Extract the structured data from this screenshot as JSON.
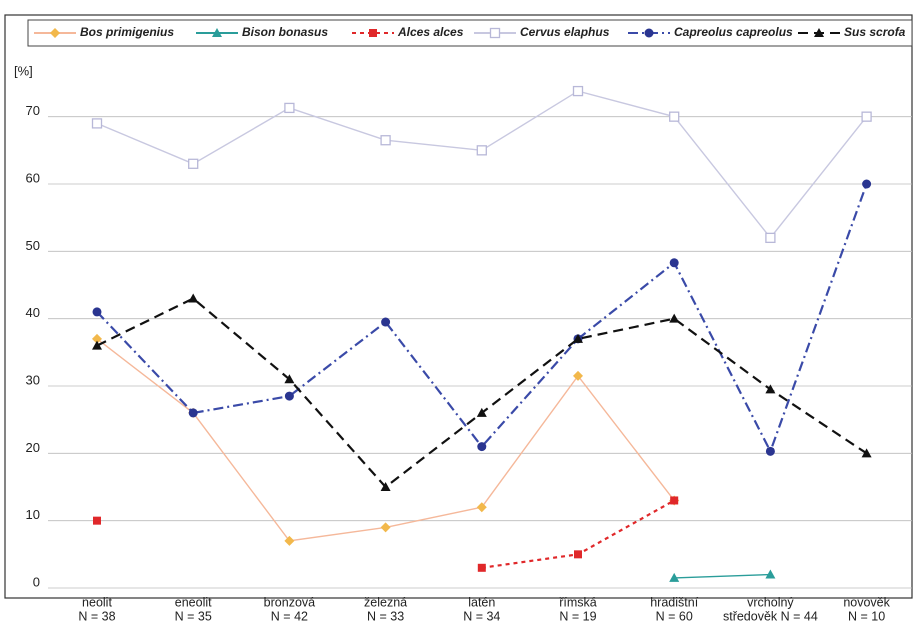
{
  "chart_data": {
    "type": "line",
    "y_axis_label": "[%]",
    "categories": [
      [
        "neolit",
        "N = 38"
      ],
      [
        "eneolit",
        "N = 35"
      ],
      [
        "bronzová",
        "N = 42"
      ],
      [
        "železná",
        "N = 33"
      ],
      [
        "latén",
        "N = 34"
      ],
      [
        "římská",
        "N = 19"
      ],
      [
        "hradištní",
        "N = 60"
      ],
      [
        "vrcholný",
        "středověk N = 44"
      ],
      [
        "novověk",
        "N = 10"
      ]
    ],
    "ylim": [
      0,
      75
    ],
    "yticks": [
      0,
      10,
      20,
      30,
      40,
      50,
      60,
      70
    ],
    "grid": true,
    "legend": "top",
    "series": [
      {
        "name": "Bos primigenius",
        "color": "#f2b84b",
        "line_color": "#f5b89a",
        "marker": "diamond",
        "line_style": "solid",
        "values": [
          37,
          26,
          7,
          9,
          12,
          31.5,
          13,
          null,
          null
        ]
      },
      {
        "name": "Bison bonasus",
        "color": "#2a9d9a",
        "line_color": "#2a9d9a",
        "marker": "triangle",
        "line_style": "solid",
        "values": [
          null,
          null,
          null,
          null,
          null,
          null,
          1.5,
          2,
          null
        ]
      },
      {
        "name": "Alces alces",
        "color": "#e0282a",
        "line_color": "#e0282a",
        "marker": "square",
        "line_style": "dotted",
        "values": [
          10,
          null,
          null,
          null,
          3,
          5,
          13,
          null,
          null
        ]
      },
      {
        "name": "Cervus elaphus",
        "color": "#b8b8d8",
        "line_color": "#c8c8e0",
        "marker": "open-square",
        "line_style": "solid",
        "values": [
          69,
          63,
          71.3,
          66.5,
          65,
          73.8,
          70,
          52,
          70
        ]
      },
      {
        "name": "Capreolus capreolus",
        "color": "#2a3590",
        "line_color": "#3a4aa8",
        "marker": "circle",
        "line_style": "dashdot",
        "values": [
          41,
          26,
          28.5,
          39.5,
          21,
          37,
          48.3,
          20.3,
          60
        ]
      },
      {
        "name": "Sus scrofa",
        "color": "#111111",
        "line_color": "#111111",
        "marker": "triangle",
        "line_style": "dashed",
        "values": [
          36,
          43,
          31,
          15,
          26,
          37,
          40,
          29.5,
          20
        ]
      }
    ]
  }
}
